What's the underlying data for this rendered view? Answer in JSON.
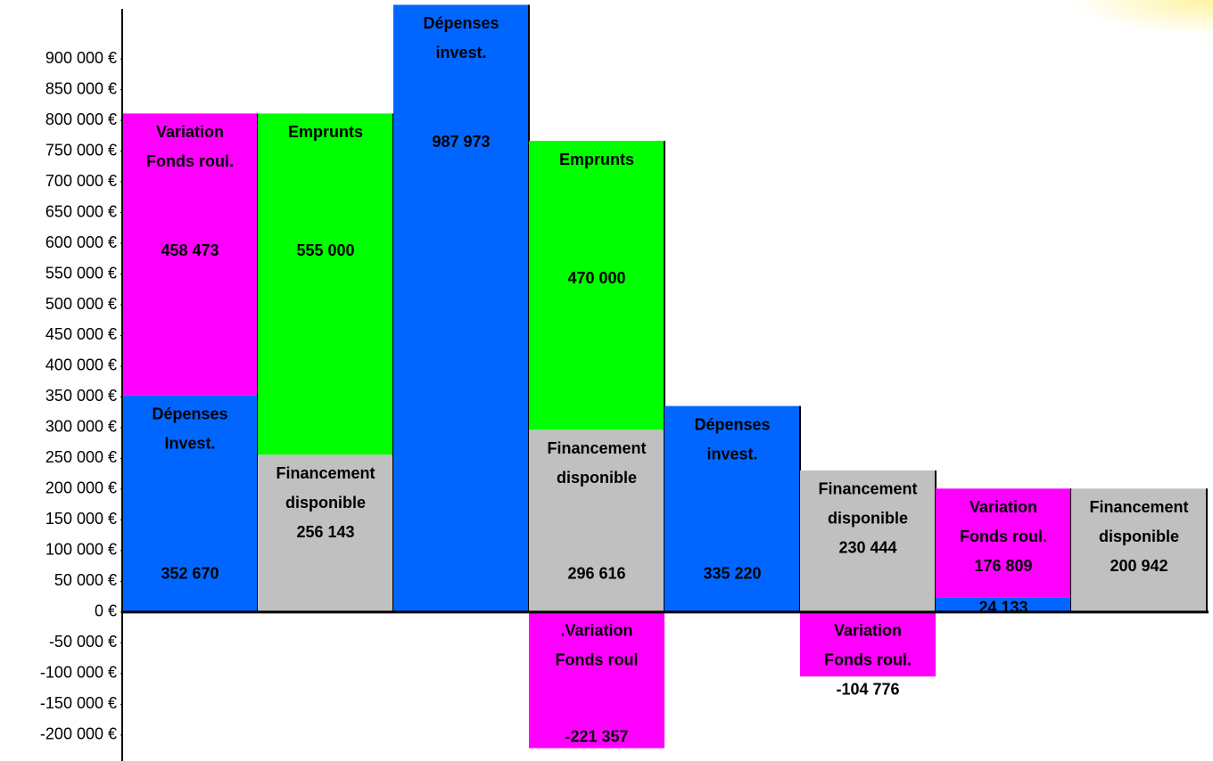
{
  "chart_data": {
    "type": "stacked_block",
    "ylim": [
      -235000,
      990000
    ],
    "yticks": [
      {
        "value": -200000,
        "label": "-200 000 €"
      },
      {
        "value": -150000,
        "label": "-150 000 €"
      },
      {
        "value": -100000,
        "label": "-100 000 €"
      },
      {
        "value": -50000,
        "label": "-50 000 €"
      },
      {
        "value": 0,
        "label": "0 €"
      },
      {
        "value": 50000,
        "label": "50 000 €"
      },
      {
        "value": 100000,
        "label": "100 000 €"
      },
      {
        "value": 150000,
        "label": "150 000 €"
      },
      {
        "value": 200000,
        "label": "200 000 €"
      },
      {
        "value": 250000,
        "label": "250 000 €"
      },
      {
        "value": 300000,
        "label": "300 000 €"
      },
      {
        "value": 350000,
        "label": "350 000 €"
      },
      {
        "value": 400000,
        "label": "400 000 €"
      },
      {
        "value": 450000,
        "label": "450 000 €"
      },
      {
        "value": 500000,
        "label": "500 000 €"
      },
      {
        "value": 550000,
        "label": "550 000 €"
      },
      {
        "value": 600000,
        "label": "600 000 €"
      },
      {
        "value": 650000,
        "label": "650 000 €"
      },
      {
        "value": 700000,
        "label": "700 000 €"
      },
      {
        "value": 750000,
        "label": "750 000 €"
      },
      {
        "value": 800000,
        "label": "800 000 €"
      },
      {
        "value": 850000,
        "label": "850 000 €"
      },
      {
        "value": 900000,
        "label": "900 000 €"
      }
    ],
    "bars": [
      {
        "segments": [
          {
            "label": [
              "Dépenses",
              "Invest."
            ],
            "value": 352670,
            "value_label": "352 670",
            "color": "#0066ff"
          },
          {
            "label": [
              "Variation",
              "Fonds roul."
            ],
            "value": 458473,
            "value_label": "458 473",
            "color": "#ff00ff"
          }
        ]
      },
      {
        "segments": [
          {
            "label": [
              "Financement",
              "disponible"
            ],
            "value": 256143,
            "value_label": "256 143",
            "color": "#c0c0c0"
          },
          {
            "label": [
              "Emprunts"
            ],
            "value": 555000,
            "value_label": "555 000",
            "color": "#00ff00"
          }
        ]
      },
      {
        "segments": [
          {
            "label": [
              "Dépenses",
              "invest."
            ],
            "value": 987973,
            "value_label": "987 973",
            "color": "#0066ff"
          }
        ]
      },
      {
        "segments": [
          {
            "label": [
              "Financement",
              "disponible"
            ],
            "value": 296616,
            "value_label": "296 616",
            "color": "#c0c0c0"
          },
          {
            "label": [
              "Emprunts"
            ],
            "value": 470000,
            "value_label": "470 000",
            "color": "#00ff00"
          },
          {
            "label": [
              ".Variation",
              "Fonds roul"
            ],
            "value": -221357,
            "value_label": "-221 357",
            "color": "#ff00ff"
          }
        ]
      },
      {
        "segments": [
          {
            "label": [
              "Dépenses",
              "invest."
            ],
            "value": 335220,
            "value_label": "335 220",
            "color": "#0066ff"
          }
        ]
      },
      {
        "segments": [
          {
            "label": [
              "Financement",
              "disponible"
            ],
            "value": 230444,
            "value_label": "230 444",
            "color": "#c0c0c0"
          },
          {
            "label": [
              "Variation",
              "Fonds roul."
            ],
            "value": -104776,
            "value_label": "-104 776",
            "color": "#ff00ff"
          }
        ]
      },
      {
        "segments": [
          {
            "label": [],
            "value": 24133,
            "value_label": "24 133",
            "color": "#0066ff"
          },
          {
            "label": [
              "Variation",
              "Fonds roul."
            ],
            "value": 176809,
            "value_label": "176 809",
            "color": "#ff00ff"
          }
        ]
      },
      {
        "segments": [
          {
            "label": [
              "Financement",
              "disponible"
            ],
            "value": 200942,
            "value_label": "200 942",
            "color": "#c0c0c0"
          }
        ]
      }
    ]
  }
}
